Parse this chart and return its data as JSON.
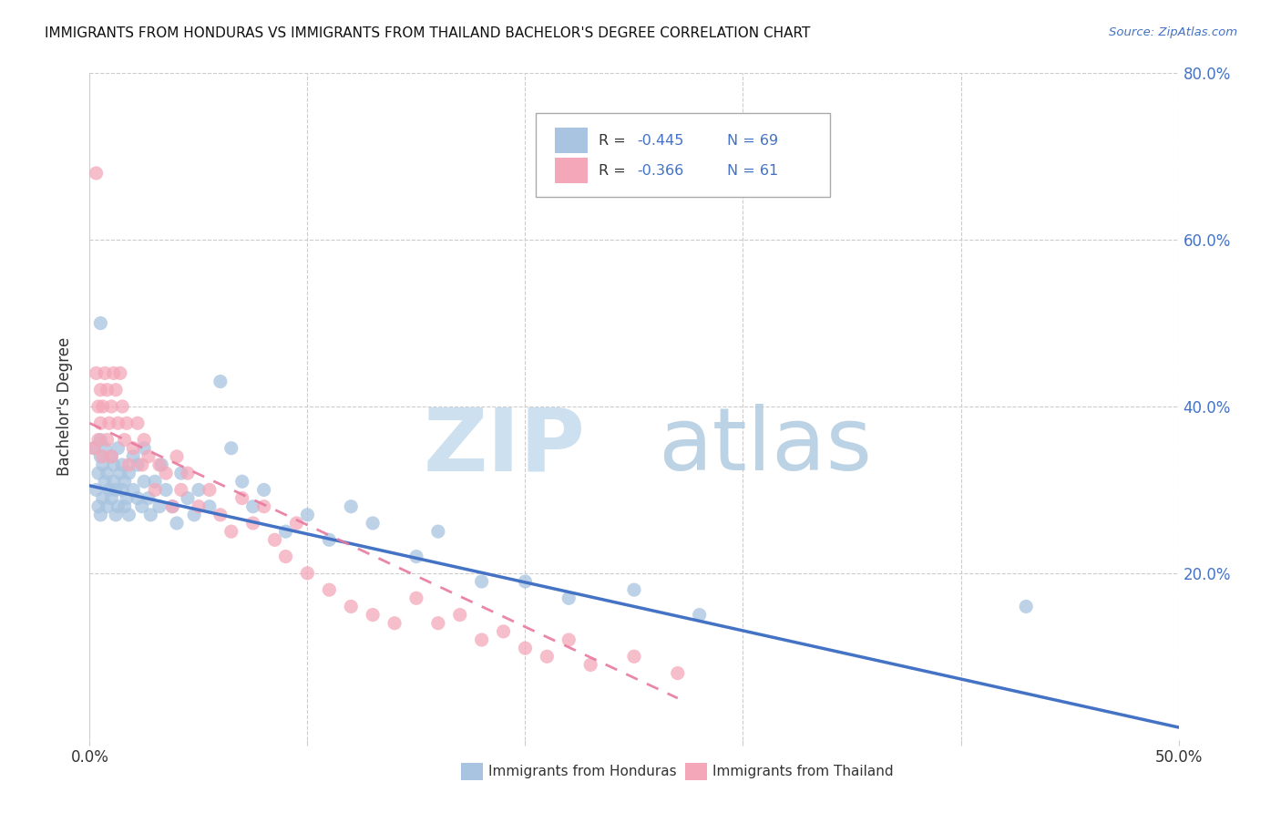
{
  "title": "IMMIGRANTS FROM HONDURAS VS IMMIGRANTS FROM THAILAND BACHELOR'S DEGREE CORRELATION CHART",
  "source": "Source: ZipAtlas.com",
  "ylabel": "Bachelor's Degree",
  "right_ytick_labels": [
    "80.0%",
    "60.0%",
    "40.0%",
    "20.0%"
  ],
  "right_ytick_vals": [
    0.8,
    0.6,
    0.4,
    0.2
  ],
  "r_honduras": -0.445,
  "n_honduras": 69,
  "r_thailand": -0.366,
  "n_thailand": 61,
  "color_honduras": "#a8c4e0",
  "color_thailand": "#f4a7b9",
  "trendline_honduras_color": "#4472c4",
  "trendline_thailand_color": "#e87aa0",
  "text_color_blue": "#4472c4",
  "text_color_dark": "#333333",
  "watermark_zip_color": "#cce0f0",
  "watermark_atlas_color": "#b0cce0",
  "xlim": [
    0.0,
    0.5
  ],
  "ylim": [
    0.0,
    0.8
  ],
  "background": "#ffffff",
  "grid_color": "#cccccc",
  "honduras_x": [
    0.002,
    0.003,
    0.004,
    0.004,
    0.005,
    0.005,
    0.005,
    0.006,
    0.006,
    0.007,
    0.007,
    0.008,
    0.008,
    0.009,
    0.01,
    0.01,
    0.011,
    0.011,
    0.012,
    0.012,
    0.013,
    0.013,
    0.014,
    0.015,
    0.015,
    0.016,
    0.016,
    0.017,
    0.018,
    0.018,
    0.02,
    0.02,
    0.022,
    0.022,
    0.024,
    0.025,
    0.025,
    0.027,
    0.028,
    0.03,
    0.032,
    0.033,
    0.035,
    0.038,
    0.04,
    0.042,
    0.045,
    0.048,
    0.05,
    0.055,
    0.06,
    0.065,
    0.07,
    0.075,
    0.08,
    0.09,
    0.1,
    0.11,
    0.12,
    0.13,
    0.15,
    0.16,
    0.18,
    0.2,
    0.22,
    0.25,
    0.28,
    0.43,
    0.005
  ],
  "honduras_y": [
    0.35,
    0.3,
    0.28,
    0.32,
    0.27,
    0.34,
    0.36,
    0.29,
    0.33,
    0.31,
    0.35,
    0.28,
    0.32,
    0.3,
    0.34,
    0.29,
    0.33,
    0.31,
    0.27,
    0.3,
    0.35,
    0.28,
    0.32,
    0.3,
    0.33,
    0.28,
    0.31,
    0.29,
    0.27,
    0.32,
    0.3,
    0.34,
    0.29,
    0.33,
    0.28,
    0.31,
    0.35,
    0.29,
    0.27,
    0.31,
    0.28,
    0.33,
    0.3,
    0.28,
    0.26,
    0.32,
    0.29,
    0.27,
    0.3,
    0.28,
    0.43,
    0.35,
    0.31,
    0.28,
    0.3,
    0.25,
    0.27,
    0.24,
    0.28,
    0.26,
    0.22,
    0.25,
    0.19,
    0.19,
    0.17,
    0.18,
    0.15,
    0.16,
    0.5
  ],
  "thailand_x": [
    0.002,
    0.003,
    0.004,
    0.004,
    0.005,
    0.005,
    0.006,
    0.006,
    0.007,
    0.008,
    0.008,
    0.009,
    0.01,
    0.01,
    0.011,
    0.012,
    0.013,
    0.014,
    0.015,
    0.016,
    0.017,
    0.018,
    0.02,
    0.022,
    0.024,
    0.025,
    0.027,
    0.03,
    0.032,
    0.035,
    0.038,
    0.04,
    0.042,
    0.045,
    0.05,
    0.055,
    0.06,
    0.065,
    0.07,
    0.075,
    0.08,
    0.085,
    0.09,
    0.095,
    0.1,
    0.11,
    0.12,
    0.13,
    0.14,
    0.15,
    0.16,
    0.17,
    0.18,
    0.19,
    0.2,
    0.21,
    0.22,
    0.23,
    0.25,
    0.27,
    0.003
  ],
  "thailand_y": [
    0.35,
    0.44,
    0.4,
    0.36,
    0.42,
    0.38,
    0.34,
    0.4,
    0.44,
    0.36,
    0.42,
    0.38,
    0.4,
    0.34,
    0.44,
    0.42,
    0.38,
    0.44,
    0.4,
    0.36,
    0.38,
    0.33,
    0.35,
    0.38,
    0.33,
    0.36,
    0.34,
    0.3,
    0.33,
    0.32,
    0.28,
    0.34,
    0.3,
    0.32,
    0.28,
    0.3,
    0.27,
    0.25,
    0.29,
    0.26,
    0.28,
    0.24,
    0.22,
    0.26,
    0.2,
    0.18,
    0.16,
    0.15,
    0.14,
    0.17,
    0.14,
    0.15,
    0.12,
    0.13,
    0.11,
    0.1,
    0.12,
    0.09,
    0.1,
    0.08,
    0.68
  ],
  "trend_h_x0": 0.0,
  "trend_h_y0": 0.305,
  "trend_h_x1": 0.5,
  "trend_h_y1": 0.015,
  "trend_t_x0": 0.0,
  "trend_t_y0": 0.38,
  "trend_t_x1": 0.27,
  "trend_t_y1": 0.05
}
